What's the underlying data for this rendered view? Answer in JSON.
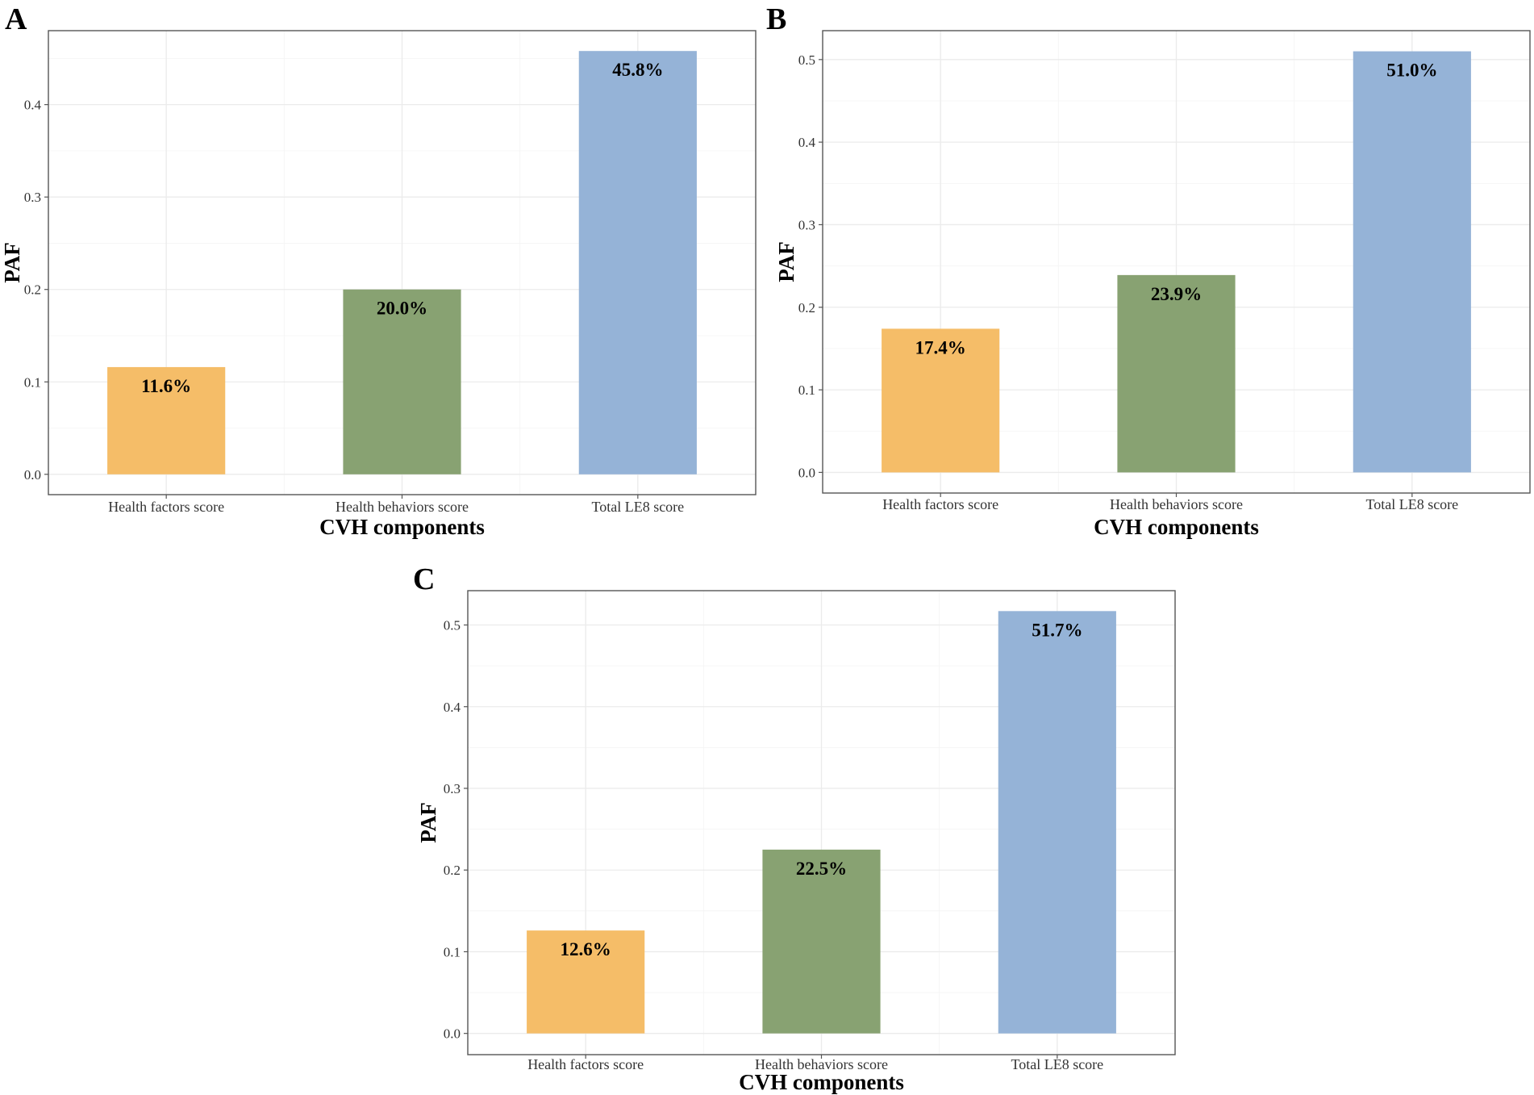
{
  "colors": {
    "orange": "#f5bd68",
    "green": "#88a272",
    "blue": "#95b3d7"
  },
  "chart_data": [
    {
      "panel": "A",
      "type": "bar",
      "categories": [
        "Health factors score",
        "Health behaviors score",
        "Total LE8 score"
      ],
      "values": [
        0.116,
        0.2,
        0.458
      ],
      "labels": [
        "11.6%",
        "20.0%",
        "45.8%"
      ],
      "xlabel": "CVH components",
      "ylabel": "PAF",
      "ylim": [
        -0.022,
        0.48
      ],
      "yticks": [
        0.0,
        0.1,
        0.2,
        0.3,
        0.4
      ],
      "ytick_labels": [
        "0.0",
        "0.1",
        "0.2",
        "0.3",
        "0.4"
      ]
    },
    {
      "panel": "B",
      "type": "bar",
      "categories": [
        "Health factors score",
        "Health behaviors score",
        "Total LE8 score"
      ],
      "values": [
        0.174,
        0.239,
        0.51
      ],
      "labels": [
        "17.4%",
        "23.9%",
        "51.0%"
      ],
      "xlabel": "CVH components",
      "ylabel": "PAF",
      "ylim": [
        -0.025,
        0.535
      ],
      "yticks": [
        0.0,
        0.1,
        0.2,
        0.3,
        0.4,
        0.5
      ],
      "ytick_labels": [
        "0.0",
        "0.1",
        "0.2",
        "0.3",
        "0.4",
        "0.5"
      ]
    },
    {
      "panel": "C",
      "type": "bar",
      "categories": [
        "Health factors score",
        "Health behaviors score",
        "Total LE8 score"
      ],
      "values": [
        0.126,
        0.225,
        0.517
      ],
      "labels": [
        "12.6%",
        "22.5%",
        "51.7%"
      ],
      "xlabel": "CVH components",
      "ylabel": "PAF",
      "ylim": [
        -0.026,
        0.542
      ],
      "yticks": [
        0.0,
        0.1,
        0.2,
        0.3,
        0.4,
        0.5
      ],
      "ytick_labels": [
        "0.0",
        "0.1",
        "0.2",
        "0.3",
        "0.4",
        "0.5"
      ]
    }
  ]
}
